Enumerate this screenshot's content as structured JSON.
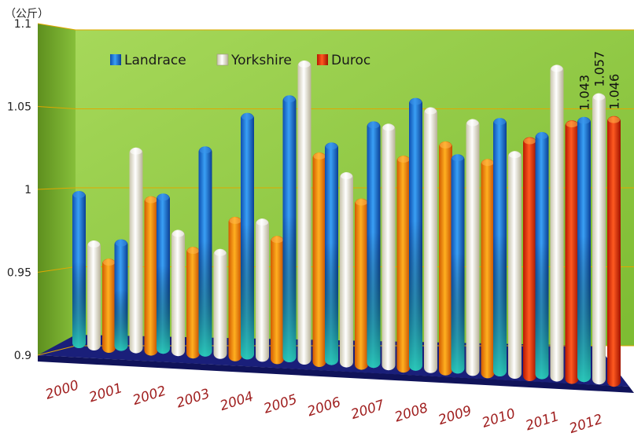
{
  "chart_data": {
    "type": "bar",
    "unit_label": "（公斤）",
    "categories": [
      "2000",
      "2001",
      "2002",
      "2003",
      "2004",
      "2005",
      "2006",
      "2007",
      "2008",
      "2009",
      "2010",
      "2011",
      "2012"
    ],
    "series": [
      {
        "name": "Landrace",
        "color": "#1f6fd6",
        "values": [
          1.0,
          0.97,
          0.999,
          1.028,
          1.048,
          1.058,
          1.03,
          1.042,
          1.055,
          1.023,
          1.043,
          1.035,
          1.043
        ]
      },
      {
        "name": "Yorkshire",
        "color": "#f2efe0",
        "values": [
          0.97,
          1.029,
          0.978,
          0.967,
          0.986,
          1.08,
          1.014,
          1.042,
          1.051,
          1.044,
          1.026,
          1.073,
          1.057
        ]
      },
      {
        "name": "Duroc",
        "color": "#f07a10",
        "values": [
          0.96,
          1.0,
          0.969,
          0.988,
          0.977,
          1.027,
          1.0,
          1.025,
          1.033,
          1.023,
          1.035,
          1.044,
          1.046
        ]
      }
    ],
    "data_labels": [
      {
        "series": "Landrace",
        "category": "2012",
        "text": "1.043"
      },
      {
        "series": "Yorkshire",
        "category": "2012",
        "text": "1.057"
      },
      {
        "series": "Duroc",
        "category": "2012",
        "text": "1.046"
      }
    ],
    "yticks": [
      "0.9",
      "0.95",
      "1",
      "1.05",
      "1.1"
    ],
    "ylim": [
      0.9,
      1.1
    ],
    "legend_position": "top-left",
    "grid": true,
    "wall_color": "#8cc63f",
    "floor_color": "#1a1f7a",
    "gridline_color": "#e0a800"
  }
}
